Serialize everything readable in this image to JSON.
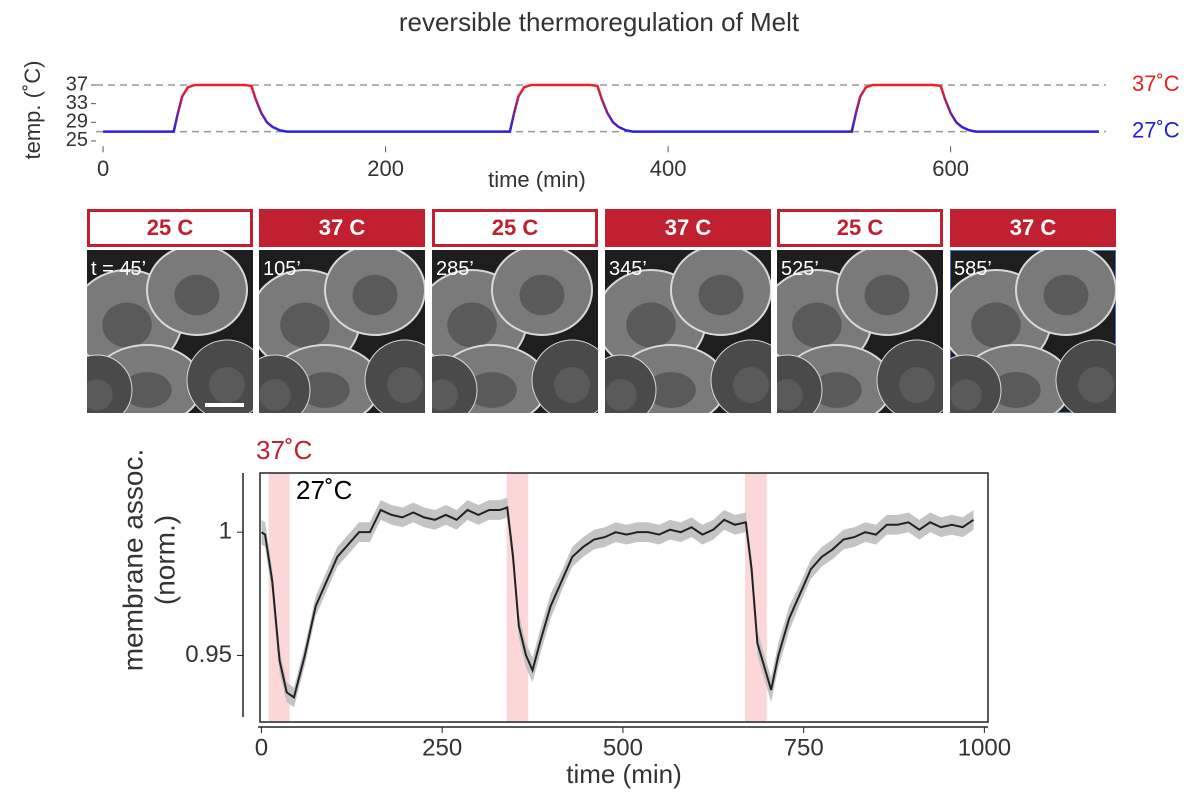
{
  "title": "reversible thermoregulation of Melt",
  "chart_data": [
    {
      "type": "line",
      "xlabel": "time (min)",
      "ylabel": "temp. (˚C)",
      "xlim": [
        -5,
        710
      ],
      "xticks": [
        0,
        200,
        400,
        600
      ],
      "ylim": [
        24.5,
        38.5
      ],
      "yticks": [
        25,
        29,
        33,
        37
      ],
      "color_scale": [
        "#2a1fdc",
        "#ee2222"
      ],
      "reference_lines": [
        {
          "value": 37,
          "label": "37˚C",
          "color": "#e8231f"
        },
        {
          "value": 27,
          "label": "27˚C",
          "color": "#2222cc"
        }
      ],
      "x": [
        0,
        50,
        53,
        56,
        60,
        65,
        100,
        105,
        108,
        112,
        116,
        120,
        125,
        130,
        200,
        288,
        291,
        294,
        298,
        303,
        345,
        350,
        353,
        357,
        361,
        365,
        370,
        375,
        450,
        530,
        533,
        536,
        540,
        545,
        588,
        593,
        596,
        600,
        604,
        608,
        613,
        618,
        705
      ],
      "values": [
        27,
        27,
        31,
        34.5,
        36.5,
        37,
        37,
        36.8,
        34,
        31,
        29,
        28,
        27.3,
        27,
        27,
        27,
        31,
        34.5,
        36.5,
        37,
        37,
        36.8,
        34,
        31,
        29,
        28,
        27.3,
        27,
        27,
        27,
        31,
        34.5,
        36.5,
        37,
        37,
        36.8,
        34,
        31,
        29,
        28,
        27.3,
        27,
        27
      ]
    },
    {
      "type": "line",
      "xlabel": "time (min)",
      "ylabel": [
        "membrane assoc.",
        "(norm.)"
      ],
      "xlim": [
        -2,
        1005
      ],
      "xticks": [
        0,
        250,
        500,
        750,
        1000
      ],
      "ylim": [
        0.923,
        1.024
      ],
      "yticks": [
        0.95,
        1
      ],
      "color": "#222222",
      "band_color": "#c4c4c4",
      "highlight_x": [
        [
          10,
          39
        ],
        [
          339,
          369
        ],
        [
          669,
          699
        ]
      ],
      "highlight_color": "#fcd7d7",
      "annotations": [
        {
          "text": "37˚C",
          "color": "#c0202f"
        },
        {
          "text": "27˚C",
          "color": "#000000"
        }
      ],
      "x": [
        0,
        5,
        15,
        25,
        35,
        45,
        60,
        75,
        90,
        105,
        120,
        135,
        150,
        165,
        180,
        195,
        210,
        225,
        240,
        255,
        270,
        285,
        300,
        315,
        330,
        340,
        348,
        356,
        366,
        375,
        385,
        400,
        415,
        430,
        445,
        460,
        475,
        490,
        505,
        520,
        535,
        550,
        565,
        580,
        595,
        610,
        625,
        640,
        655,
        670,
        678,
        686,
        696,
        705,
        715,
        730,
        745,
        760,
        775,
        790,
        805,
        820,
        835,
        850,
        865,
        880,
        895,
        910,
        925,
        940,
        955,
        970,
        985
      ],
      "values": [
        1.0,
        0.999,
        0.98,
        0.948,
        0.935,
        0.933,
        0.95,
        0.97,
        0.98,
        0.99,
        0.995,
        1.0,
        1.0,
        1.009,
        1.007,
        1.006,
        1.008,
        1.006,
        1.005,
        1.007,
        1.005,
        1.009,
        1.007,
        1.009,
        1.009,
        1.01,
        0.99,
        0.962,
        0.95,
        0.944,
        0.955,
        0.97,
        0.98,
        0.99,
        0.994,
        0.997,
        0.998,
        1.0,
        0.999,
        1.0,
        1.0,
        0.999,
        1.001,
        1.0,
        1.002,
        0.999,
        1.001,
        1.005,
        1.003,
        1.004,
        0.985,
        0.955,
        0.945,
        0.936,
        0.95,
        0.965,
        0.975,
        0.985,
        0.99,
        0.993,
        0.997,
        0.998,
        1.0,
        0.999,
        1.003,
        1.003,
        1.004,
        1.001,
        1.004,
        1.002,
        1.003,
        1.002,
        1.005
      ],
      "errors": [
        0.005,
        0.005,
        0.005,
        0.005,
        0.004,
        0.004,
        0.004,
        0.004,
        0.004,
        0.004,
        0.004,
        0.004,
        0.004,
        0.004,
        0.004,
        0.004,
        0.004,
        0.004,
        0.004,
        0.004,
        0.004,
        0.004,
        0.004,
        0.004,
        0.004,
        0.004,
        0.005,
        0.005,
        0.005,
        0.005,
        0.005,
        0.005,
        0.004,
        0.004,
        0.004,
        0.004,
        0.004,
        0.004,
        0.004,
        0.004,
        0.004,
        0.004,
        0.004,
        0.004,
        0.004,
        0.004,
        0.004,
        0.004,
        0.004,
        0.004,
        0.005,
        0.005,
        0.005,
        0.005,
        0.005,
        0.005,
        0.004,
        0.004,
        0.004,
        0.004,
        0.004,
        0.004,
        0.004,
        0.004,
        0.004,
        0.004,
        0.004,
        0.004,
        0.004,
        0.004,
        0.004,
        0.004,
        0.004
      ]
    }
  ],
  "panels": [
    {
      "label": "25 C",
      "time": "t = 45’",
      "filled": false
    },
    {
      "label": "37 C",
      "time": "105’",
      "filled": true
    },
    {
      "label": "25 C",
      "time": "285’",
      "filled": false
    },
    {
      "label": "37 C",
      "time": "345’",
      "filled": true
    },
    {
      "label": "25 C",
      "time": "525’",
      "filled": false
    },
    {
      "label": "37 C",
      "time": "585’",
      "filled": true
    }
  ],
  "panel_color": "#c0202f"
}
